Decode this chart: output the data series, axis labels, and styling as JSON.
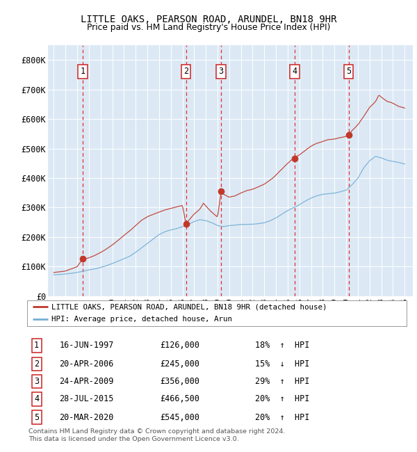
{
  "title": "LITTLE OAKS, PEARSON ROAD, ARUNDEL, BN18 9HR",
  "subtitle": "Price paid vs. HM Land Registry's House Price Index (HPI)",
  "bg_color": "#dce9f5",
  "legend_label_red": "LITTLE OAKS, PEARSON ROAD, ARUNDEL, BN18 9HR (detached house)",
  "legend_label_blue": "HPI: Average price, detached house, Arun",
  "footer": "Contains HM Land Registry data © Crown copyright and database right 2024.\nThis data is licensed under the Open Government Licence v3.0.",
  "transactions": [
    {
      "num": 1,
      "date": "16-JUN-1997",
      "price": 126000,
      "pct": "18%",
      "dir": "↑",
      "year": 1997.46
    },
    {
      "num": 2,
      "date": "20-APR-2006",
      "price": 245000,
      "pct": "15%",
      "dir": "↓",
      "year": 2006.3
    },
    {
      "num": 3,
      "date": "24-APR-2009",
      "price": 356000,
      "pct": "29%",
      "dir": "↑",
      "year": 2009.31
    },
    {
      "num": 4,
      "date": "28-JUL-2015",
      "price": 466500,
      "pct": "20%",
      "dir": "↑",
      "year": 2015.58
    },
    {
      "num": 5,
      "date": "20-MAR-2020",
      "price": 545000,
      "pct": "20%",
      "dir": "↑",
      "year": 2020.21
    }
  ],
  "ylim": [
    0,
    850000
  ],
  "yticks": [
    0,
    100000,
    200000,
    300000,
    400000,
    500000,
    600000,
    700000,
    800000
  ],
  "ytick_labels": [
    "£0",
    "£100K",
    "£200K",
    "£300K",
    "£400K",
    "£500K",
    "£600K",
    "£700K",
    "£800K"
  ],
  "x_min": 1994.5,
  "x_max": 2025.7
}
